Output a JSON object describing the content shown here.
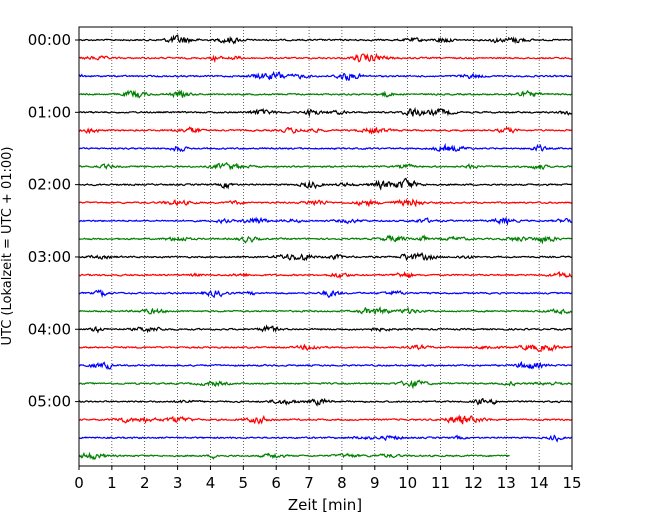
{
  "chart_data": {
    "type": "line",
    "title": "",
    "xlabel": "Zeit  [min]",
    "ylabel": "UTC (Lokalzeit = UTC + 01:00)",
    "xlim": [
      0,
      15
    ],
    "xticks": [
      0,
      1,
      2,
      3,
      4,
      5,
      6,
      7,
      8,
      9,
      10,
      11,
      12,
      13,
      14,
      15
    ],
    "xtick_labels": [
      "0",
      "1",
      "2",
      "3",
      "4",
      "5",
      "6",
      "7",
      "8",
      "9",
      "10",
      "11",
      "12",
      "13",
      "14",
      "15"
    ],
    "ytick_labels": [
      "00:00",
      "01:00",
      "02:00",
      "03:00",
      "04:00",
      "05:00"
    ],
    "ytick_rows": [
      0,
      4,
      8,
      12,
      16,
      20
    ],
    "grid": "vertical dotted at each minute",
    "rows": 24,
    "row_minutes": 15,
    "color_cycle": [
      "#000000",
      "#ff0000",
      "#0000ff",
      "#008000"
    ],
    "last_row_end_minute": 13.1,
    "series": [
      {
        "start_utc": "00:00",
        "color": "#000000"
      },
      {
        "start_utc": "00:15",
        "color": "#ff0000"
      },
      {
        "start_utc": "00:30",
        "color": "#0000ff"
      },
      {
        "start_utc": "00:45",
        "color": "#008000"
      },
      {
        "start_utc": "01:00",
        "color": "#000000"
      },
      {
        "start_utc": "01:15",
        "color": "#ff0000"
      },
      {
        "start_utc": "01:30",
        "color": "#0000ff"
      },
      {
        "start_utc": "01:45",
        "color": "#008000"
      },
      {
        "start_utc": "02:00",
        "color": "#000000"
      },
      {
        "start_utc": "02:15",
        "color": "#ff0000"
      },
      {
        "start_utc": "02:30",
        "color": "#0000ff"
      },
      {
        "start_utc": "02:45",
        "color": "#008000"
      },
      {
        "start_utc": "03:00",
        "color": "#000000"
      },
      {
        "start_utc": "03:15",
        "color": "#ff0000"
      },
      {
        "start_utc": "03:30",
        "color": "#0000ff"
      },
      {
        "start_utc": "03:45",
        "color": "#008000"
      },
      {
        "start_utc": "04:00",
        "color": "#000000"
      },
      {
        "start_utc": "04:15",
        "color": "#ff0000"
      },
      {
        "start_utc": "04:30",
        "color": "#0000ff"
      },
      {
        "start_utc": "04:45",
        "color": "#008000"
      },
      {
        "start_utc": "05:00",
        "color": "#000000"
      },
      {
        "start_utc": "05:15",
        "color": "#ff0000"
      },
      {
        "start_utc": "05:30",
        "color": "#0000ff"
      },
      {
        "start_utc": "05:45",
        "color": "#008000"
      }
    ]
  }
}
